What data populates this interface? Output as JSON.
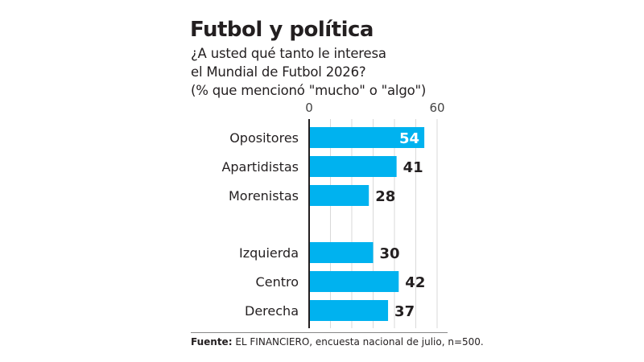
{
  "chart_data": {
    "type": "bar",
    "orientation": "horizontal",
    "title": "Futbol y política",
    "subtitle_lines": [
      "¿A usted qué tanto le interesa",
      "el Mundial de Futbol 2026?",
      "(% que mencionó  \"mucho\" o \"algo\")"
    ],
    "groups": [
      {
        "categories": [
          "Opositores",
          "Apartidistas",
          "Morenistas"
        ],
        "values": [
          54,
          41,
          28
        ]
      },
      {
        "categories": [
          "Izquierda",
          "Centro",
          "Derecha"
        ],
        "values": [
          30,
          42,
          37
        ]
      }
    ],
    "categories": [
      "Opositores",
      "Apartidistas",
      "Morenistas",
      "Izquierda",
      "Centro",
      "Derecha"
    ],
    "values": [
      54,
      41,
      28,
      30,
      42,
      37
    ],
    "xlim": [
      0,
      60
    ],
    "xticks_labeled": [
      0,
      60
    ],
    "gridlines": [
      0,
      10,
      20,
      30,
      40,
      50,
      60
    ],
    "grid": true,
    "xlabel": "",
    "ylabel": "",
    "bar_color": "#00b2ef",
    "label_inside_color": "#ffffff",
    "label_outside_color": "#231f20",
    "source_label": "Fuente:",
    "source_text": " EL FINANCIERO, encuesta nacional de julio, n=500."
  }
}
